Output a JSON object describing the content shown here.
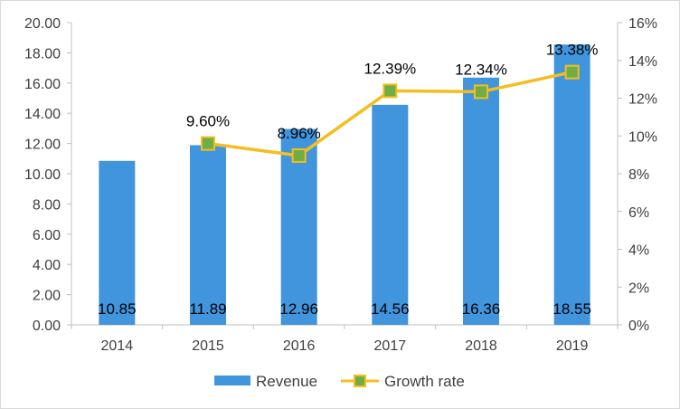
{
  "chart_data": {
    "type": "bar",
    "categories": [
      "2014",
      "2015",
      "2016",
      "2017",
      "2018",
      "2019"
    ],
    "series": [
      {
        "name": "Revenue",
        "type": "bar",
        "axis": "left",
        "color": "#4095dd",
        "values": [
          10.85,
          11.89,
          12.96,
          14.56,
          16.36,
          18.55
        ],
        "labels": [
          "10.85",
          "11.89",
          "12.96",
          "14.56",
          "16.36",
          "18.55"
        ]
      },
      {
        "name": "Growth rate",
        "type": "line",
        "axis": "right",
        "color": "#f5bd1f",
        "marker_color": "#70ad47",
        "values": [
          null,
          9.6,
          8.96,
          12.39,
          12.34,
          13.38
        ],
        "labels": [
          null,
          "9.60%",
          "8.96%",
          "12.39%",
          "12.34%",
          "13.38%"
        ]
      }
    ],
    "left_axis": {
      "ylim": [
        0,
        20
      ],
      "ticks": [
        0,
        2,
        4,
        6,
        8,
        10,
        12,
        14,
        16,
        18,
        20
      ],
      "tick_labels": [
        "0.00",
        "2.00",
        "4.00",
        "6.00",
        "8.00",
        "10.00",
        "12.00",
        "14.00",
        "16.00",
        "18.00",
        "20.00"
      ]
    },
    "right_axis": {
      "ylim": [
        0,
        16
      ],
      "ticks": [
        0,
        2,
        4,
        6,
        8,
        10,
        12,
        14,
        16
      ],
      "tick_labels": [
        "0%",
        "2%",
        "4%",
        "6%",
        "8%",
        "10%",
        "12%",
        "14%",
        "16%"
      ]
    },
    "title": "",
    "xlabel": "",
    "ylabel": "",
    "grid": false,
    "legend_position": "bottom"
  }
}
